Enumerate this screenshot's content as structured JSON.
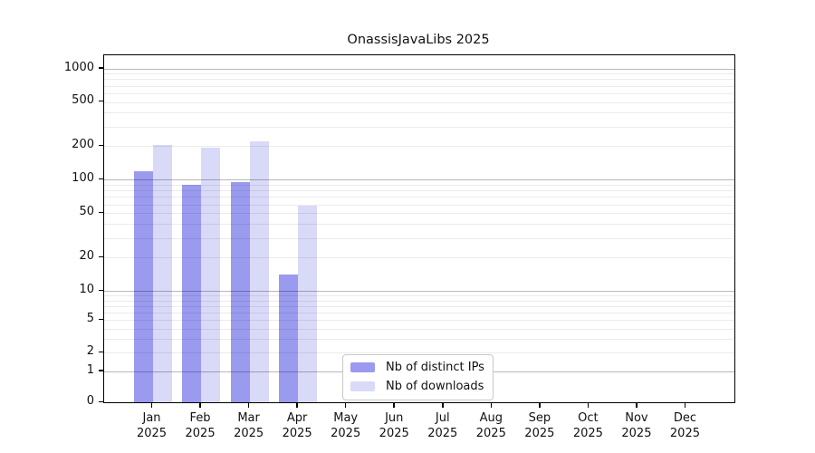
{
  "chart_data": {
    "type": "bar",
    "title": "OnassisJavaLibs 2025",
    "x_year": "2025",
    "categories": [
      "Jan",
      "Feb",
      "Mar",
      "Apr",
      "May",
      "Jun",
      "Jul",
      "Aug",
      "Sep",
      "Oct",
      "Nov",
      "Dec"
    ],
    "series": [
      {
        "name": "Nb of distinct IPs",
        "color": "#9a9aef",
        "values": [
          120,
          90,
          95,
          14,
          0,
          0,
          0,
          0,
          0,
          0,
          0,
          0
        ]
      },
      {
        "name": "Nb of downloads",
        "color": "#d9d9f8",
        "values": [
          205,
          195,
          220,
          58,
          0,
          0,
          0,
          0,
          0,
          0,
          0,
          0
        ]
      }
    ],
    "yticks": [
      0,
      1,
      2,
      5,
      10,
      20,
      50,
      100,
      200,
      500,
      1000
    ],
    "yscale": "adjusted-log10 (log scale that displays 0)",
    "ylim": [
      0,
      1300
    ],
    "xlabel": "",
    "ylabel": "",
    "grid": "horizontal major and minor gridlines, no vertical gridlines",
    "legend_position": "inside plot, bottom center-left",
    "colors": {
      "major_gridline": "#b8b8b8",
      "minor_gridline": "#ebebeb",
      "axis_border": "#000000",
      "text": "#111111",
      "background": "#ffffff"
    }
  }
}
